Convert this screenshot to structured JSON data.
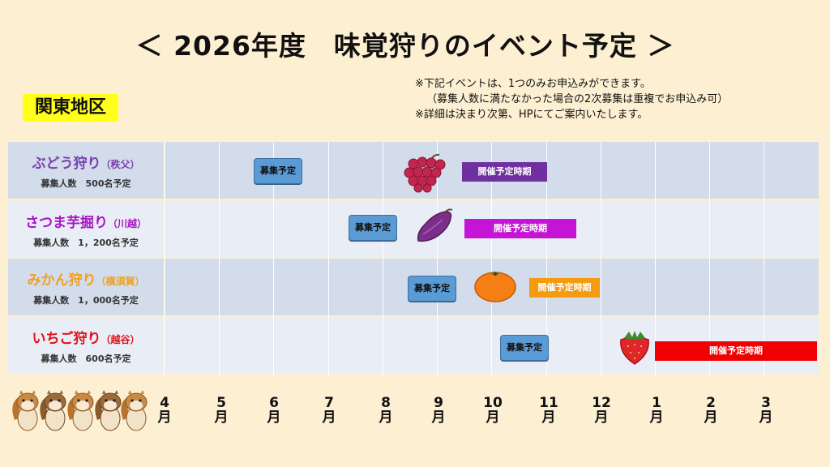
{
  "title": "＜ 2026年度　味覚狩りのイベント予定 ＞",
  "region": "関東地区",
  "notes": [
    "※下記イベントは、1つのみお申込みができます。",
    "（募集人数に満たなかった場合の2次募集は重複でお申込み可）",
    "※詳細は決まり次第、HPにてご案内いたします。"
  ],
  "events": [
    {
      "name": "ぶどう狩り",
      "place": "（秩父）",
      "recruit": "募集人数　500名予定",
      "recruit_label": "募集予定",
      "period_label": "開催予定時期",
      "color": "#7a3fb2",
      "icon": "grape-icon"
    },
    {
      "name": "さつま芋掘り",
      "place": "（川越）",
      "recruit": "募集人数　1，200名予定",
      "recruit_label": "募集予定",
      "period_label": "開催予定時期",
      "color": "#c414d6",
      "icon": "sweet-potato-icon"
    },
    {
      "name": "みかん狩り",
      "place": "（横須賀）",
      "recruit": "募集人数　1，000名予定",
      "recruit_label": "募集予定",
      "period_label": "開催予定時期",
      "color": "#f59b10",
      "icon": "mikan-icon"
    },
    {
      "name": "いちご狩り",
      "place": "（越谷）",
      "recruit": "募集人数　600名予定",
      "recruit_label": "募集予定",
      "period_label": "開催予定時期",
      "color": "#f00000",
      "icon": "strawberry-icon"
    }
  ],
  "months": [
    "4月",
    "5月",
    "6月",
    "7月",
    "8月",
    "9月",
    "10月",
    "11月",
    "12月",
    "1月",
    "2月",
    "3月"
  ],
  "mascot_icon": "squirrels-icon"
}
